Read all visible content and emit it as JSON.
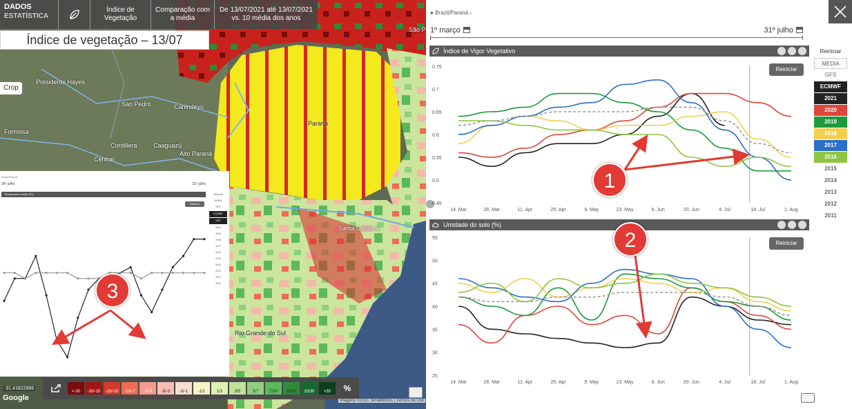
{
  "header": {
    "logo_line1": "DADOS",
    "logo_line2": "ESTATÍSTICA",
    "crumbs": [
      "Índice de Vegetação",
      "Comparação com a média",
      "De 13/07/2021 até 13/07/2021 vs. 10 média dos anos"
    ]
  },
  "map": {
    "title": "Índice de vegetação – 13/07",
    "crop_label": "Crop",
    "labels": [
      "Presidente Hayes",
      "San Pedro",
      "Canindeyú",
      "Formosa",
      "Cordillera",
      "Caaguazú",
      "Central",
      "Alto Paraná",
      "Paraná",
      "Santa Catarina",
      "Rio Grande do Sul",
      "São Pa"
    ],
    "coord": "-31.41822886",
    "google": "Google",
    "credit": "Imagens ©2021 TerraMetrics | Termos de Uso",
    "legend": {
      "items": [
        {
          "label": "<-30",
          "color": "#7a0c0c"
        },
        {
          "label": "-30/-20",
          "color": "#a31414"
        },
        {
          "label": "-20/-10",
          "color": "#d43a2a"
        },
        {
          "label": "-10/-7",
          "color": "#ef6b54"
        },
        {
          "label": "-7/-5",
          "color": "#f59a8c"
        },
        {
          "label": "-5/-3",
          "color": "#f7bfb0"
        },
        {
          "label": "-3/-1",
          "color": "#f7dfd0"
        },
        {
          "label": "-1/1",
          "color": "#f7f3c4"
        },
        {
          "label": "1/3",
          "color": "#dff0b0"
        },
        {
          "label": "3/5",
          "color": "#bfe39a"
        },
        {
          "label": "5/7",
          "color": "#8fd07e"
        },
        {
          "label": "7/10",
          "color": "#5cb85c"
        },
        {
          "label": "10/20",
          "color": "#2e8b3a"
        },
        {
          "label": "20/30",
          "color": "#146b2c"
        },
        {
          "label": ">30",
          "color": "#0b3f1c"
        }
      ],
      "percent": "%"
    }
  },
  "mini": {
    "head": "Brasil/Paraná",
    "start": "20º julho",
    "end": "31º julho",
    "title": "Temperatura média (ºC)",
    "reset": "Reiniciar",
    "side": [
      "Reiniciar",
      "MEDIA",
      "GFS",
      "ECMWF",
      "2021",
      "2020",
      "2019",
      "2018",
      "2017",
      "2016",
      "2015",
      "2014",
      "2013",
      "2012",
      "2011"
    ]
  },
  "right": {
    "location": "Brazil/Paraná ›",
    "start_date": "1º março",
    "end_date": "31º julho",
    "chart1_title": "Índice de Vigor Vegetativo",
    "chart2_title": "Umidade do solo (%)",
    "reset_label": "Reiniciar",
    "side": {
      "reset": "Reiniciar",
      "media": "MEDIA",
      "gfs": "GFS",
      "years": [
        {
          "label": "ECMWF",
          "bg": "#222222",
          "fg": "#ffffff"
        },
        {
          "label": "2021",
          "bg": "#222222",
          "fg": "#ffffff"
        },
        {
          "label": "2020",
          "bg": "#e0453a",
          "fg": "#ffffff"
        },
        {
          "label": "2019",
          "bg": "#1e9a3c",
          "fg": "#ffffff"
        },
        {
          "label": "2018",
          "bg": "#f2d04d",
          "fg": "#ffffff"
        },
        {
          "label": "2017",
          "bg": "#2a6fc9",
          "fg": "#ffffff"
        },
        {
          "label": "2016",
          "bg": "#8cc63f",
          "fg": "#ffffff"
        },
        {
          "label": "2015",
          "bg": "",
          "fg": "#666666"
        },
        {
          "label": "2014",
          "bg": "",
          "fg": "#666666"
        },
        {
          "label": "2013",
          "bg": "",
          "fg": "#666666"
        },
        {
          "label": "2012",
          "bg": "",
          "fg": "#666666"
        },
        {
          "label": "2011",
          "bg": "",
          "fg": "#666666"
        }
      ]
    }
  },
  "annotations": [
    "1",
    "2",
    "3"
  ],
  "chart_data": [
    {
      "type": "line",
      "title": "Índice de Vigor Vegetativo",
      "x": [
        "14. Mar",
        "28. Mar",
        "11. Apr",
        "25. Apr",
        "9. May",
        "23. May",
        "6. Jun",
        "20. Jun",
        "4. Jul",
        "18. Jul",
        "1. Aug"
      ],
      "ylim": [
        0.45,
        0.75
      ],
      "yticks": [
        0.45,
        0.5,
        0.55,
        0.6,
        0.65,
        0.7,
        0.75
      ],
      "series": [
        {
          "name": "2021",
          "color": "#222222",
          "values": [
            0.55,
            0.53,
            0.56,
            0.58,
            0.58,
            0.6,
            0.64,
            0.69,
            0.62,
            null,
            null
          ]
        },
        {
          "name": "2020",
          "color": "#e0453a",
          "values": [
            0.56,
            0.55,
            0.57,
            0.6,
            0.61,
            0.63,
            0.66,
            0.69,
            0.69,
            0.67,
            0.64
          ]
        },
        {
          "name": "2019",
          "color": "#1e9a3c",
          "values": [
            0.64,
            0.65,
            0.66,
            0.69,
            0.69,
            0.67,
            0.65,
            0.61,
            0.57,
            0.52,
            0.52
          ]
        },
        {
          "name": "2018",
          "color": "#f2d04d",
          "values": [
            0.58,
            0.62,
            0.64,
            0.63,
            0.61,
            0.62,
            0.62,
            0.64,
            0.65,
            0.59,
            0.55
          ]
        },
        {
          "name": "2017",
          "color": "#2a6fc9",
          "values": [
            0.6,
            0.62,
            0.64,
            0.66,
            0.67,
            0.71,
            0.72,
            0.67,
            0.61,
            0.55,
            0.5
          ]
        },
        {
          "name": "2016",
          "color": "#8cc63f",
          "values": [
            0.63,
            0.63,
            0.62,
            0.61,
            0.61,
            0.6,
            0.6,
            0.55,
            0.53,
            0.55,
            0.53
          ]
        },
        {
          "name": "MEDIA",
          "color": "#999999",
          "dashed": true,
          "values": [
            0.62,
            0.63,
            0.64,
            0.65,
            0.65,
            0.65,
            0.66,
            0.66,
            0.63,
            0.58,
            0.56
          ]
        }
      ]
    },
    {
      "type": "line",
      "title": "Umidade do solo (%)",
      "x": [
        "14. Mar",
        "28. Mar",
        "11. Apr",
        "25. Apr",
        "9. May",
        "23. May",
        "6. Jun",
        "20. Jun",
        "4. Jul",
        "18. Jul",
        "1. Aug"
      ],
      "ylim": [
        25,
        55
      ],
      "yticks": [
        25,
        30,
        35,
        40,
        45,
        50,
        55
      ],
      "series": [
        {
          "name": "2021",
          "color": "#222222",
          "values": [
            40,
            35,
            34,
            33,
            32,
            31,
            32,
            42,
            40,
            37,
            36
          ]
        },
        {
          "name": "2020",
          "color": "#e0453a",
          "values": [
            36,
            32,
            38,
            40,
            36,
            38,
            34,
            44,
            41,
            38,
            35
          ]
        },
        {
          "name": "2019",
          "color": "#1e9a3c",
          "values": [
            42,
            40,
            38,
            44,
            37,
            47,
            46,
            44,
            41,
            40,
            37
          ]
        },
        {
          "name": "2018",
          "color": "#f2d04d",
          "values": [
            45,
            43,
            46,
            42,
            44,
            46,
            45,
            43,
            44,
            41,
            39
          ]
        },
        {
          "name": "2017",
          "color": "#2a6fc9",
          "values": [
            46,
            44,
            42,
            41,
            45,
            48,
            47,
            46,
            40,
            35,
            31
          ]
        },
        {
          "name": "2016",
          "color": "#8cc63f",
          "values": [
            43,
            45,
            41,
            46,
            44,
            45,
            47,
            45,
            44,
            42,
            40
          ]
        },
        {
          "name": "MEDIA",
          "color": "#999999",
          "dashed": true,
          "values": [
            42,
            41,
            41,
            42,
            42,
            43,
            43,
            43,
            42,
            40,
            38
          ]
        }
      ]
    },
    {
      "type": "line",
      "title": "Temperatura média (ºC)",
      "x": [
        "1",
        "2",
        "3",
        "4",
        "5",
        "6",
        "7",
        "8",
        "9",
        "10",
        "11",
        "12",
        "13",
        "14",
        "15",
        "16",
        "17",
        "18",
        "19",
        "20"
      ],
      "ylim": [
        0,
        28
      ],
      "series": [
        {
          "name": "2021",
          "color": "#222222",
          "values": [
            12,
            16,
            16,
            20,
            13,
            5,
            2,
            9,
            14,
            16,
            16,
            17,
            18,
            13,
            10,
            14,
            18,
            20,
            23,
            23
          ]
        },
        {
          "name": "MEDIA",
          "color": "#999999",
          "values": [
            17,
            17,
            16,
            17,
            17,
            17,
            17,
            16,
            16,
            16,
            17,
            17,
            17,
            16,
            17,
            17,
            17,
            17,
            17,
            17
          ]
        }
      ]
    }
  ]
}
